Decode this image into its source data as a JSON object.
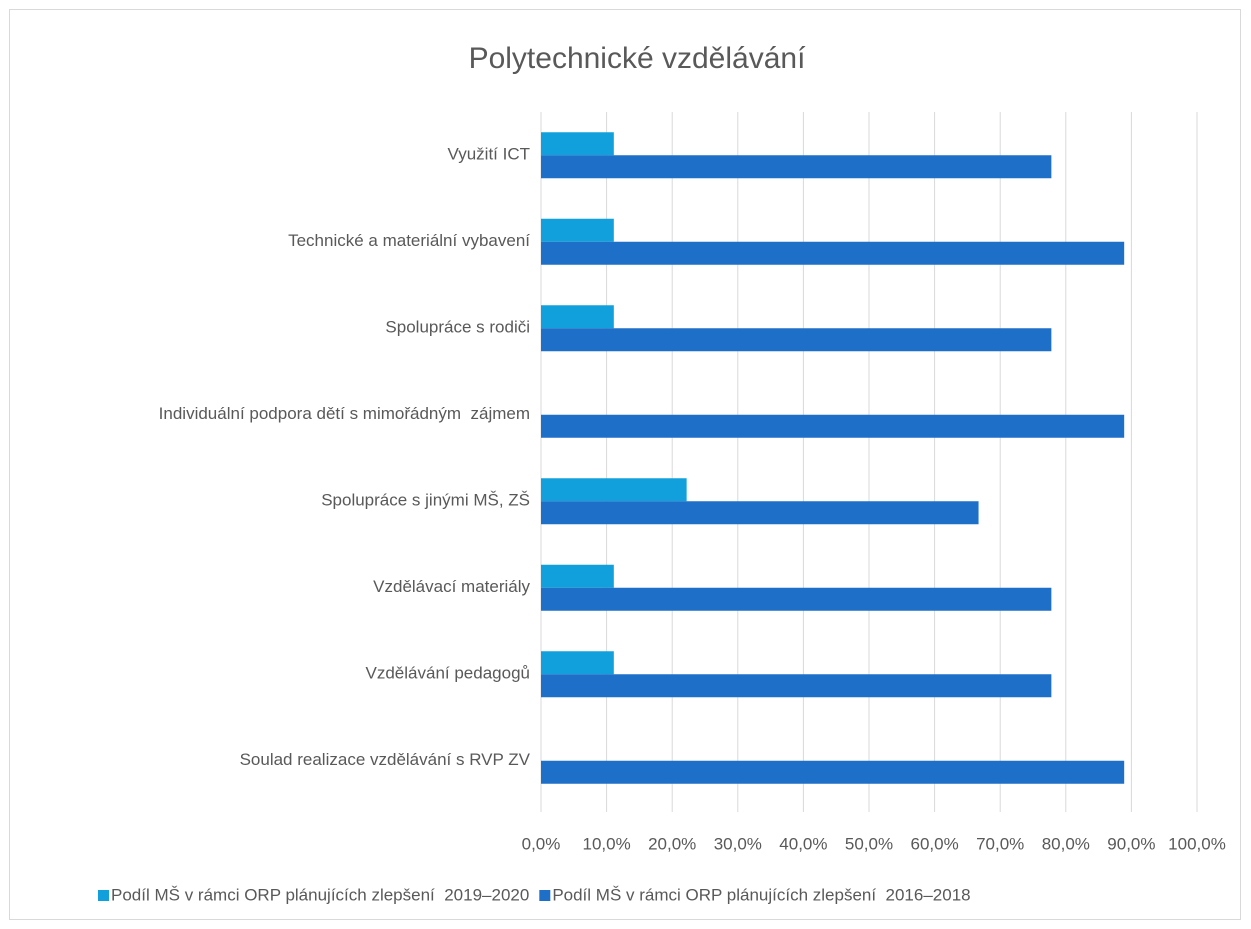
{
  "chart_data": {
    "type": "barh",
    "title": "Polytechnické vzdělávání",
    "categories": [
      "Využití ICT",
      "Technické a materiální vybavení",
      "Spolupráce s rodiči",
      "Individuální podpora dětí s mimořádným  zájmem",
      "Spolupráce s jinými MŠ, ZŠ",
      "Vzdělávací materiály",
      "Vzdělávání pedagogů",
      "Soulad realizace vzdělávání s RVP ZV"
    ],
    "series": [
      {
        "name": "Podíl MŠ v rámci ORP plánujících zlepšení  2019–2020",
        "color": "#12a0dc",
        "values": [
          11.1,
          11.1,
          11.1,
          0,
          22.2,
          11.1,
          11.1,
          0
        ]
      },
      {
        "name": "Podíl MŠ v rámci ORP plánujících zlepšení  2016–2018",
        "color": "#1e6fc8",
        "values": [
          77.8,
          88.9,
          77.8,
          88.9,
          66.7,
          77.8,
          77.8,
          88.9
        ]
      }
    ],
    "xlim": [
      0,
      100
    ],
    "xticks": [
      {
        "value": 0,
        "label": "0,0%"
      },
      {
        "value": 10,
        "label": "10,0%"
      },
      {
        "value": 20,
        "label": "20,0%"
      },
      {
        "value": 30,
        "label": "30,0%"
      },
      {
        "value": 40,
        "label": "40,0%"
      },
      {
        "value": 50,
        "label": "50,0%"
      },
      {
        "value": 60,
        "label": "60,0%"
      },
      {
        "value": 70,
        "label": "70,0%"
      },
      {
        "value": 80,
        "label": "80,0%"
      },
      {
        "value": 90,
        "label": "90,0%"
      },
      {
        "value": 100,
        "label": "100,0%"
      }
    ],
    "grid": true,
    "legend": "bottom"
  }
}
